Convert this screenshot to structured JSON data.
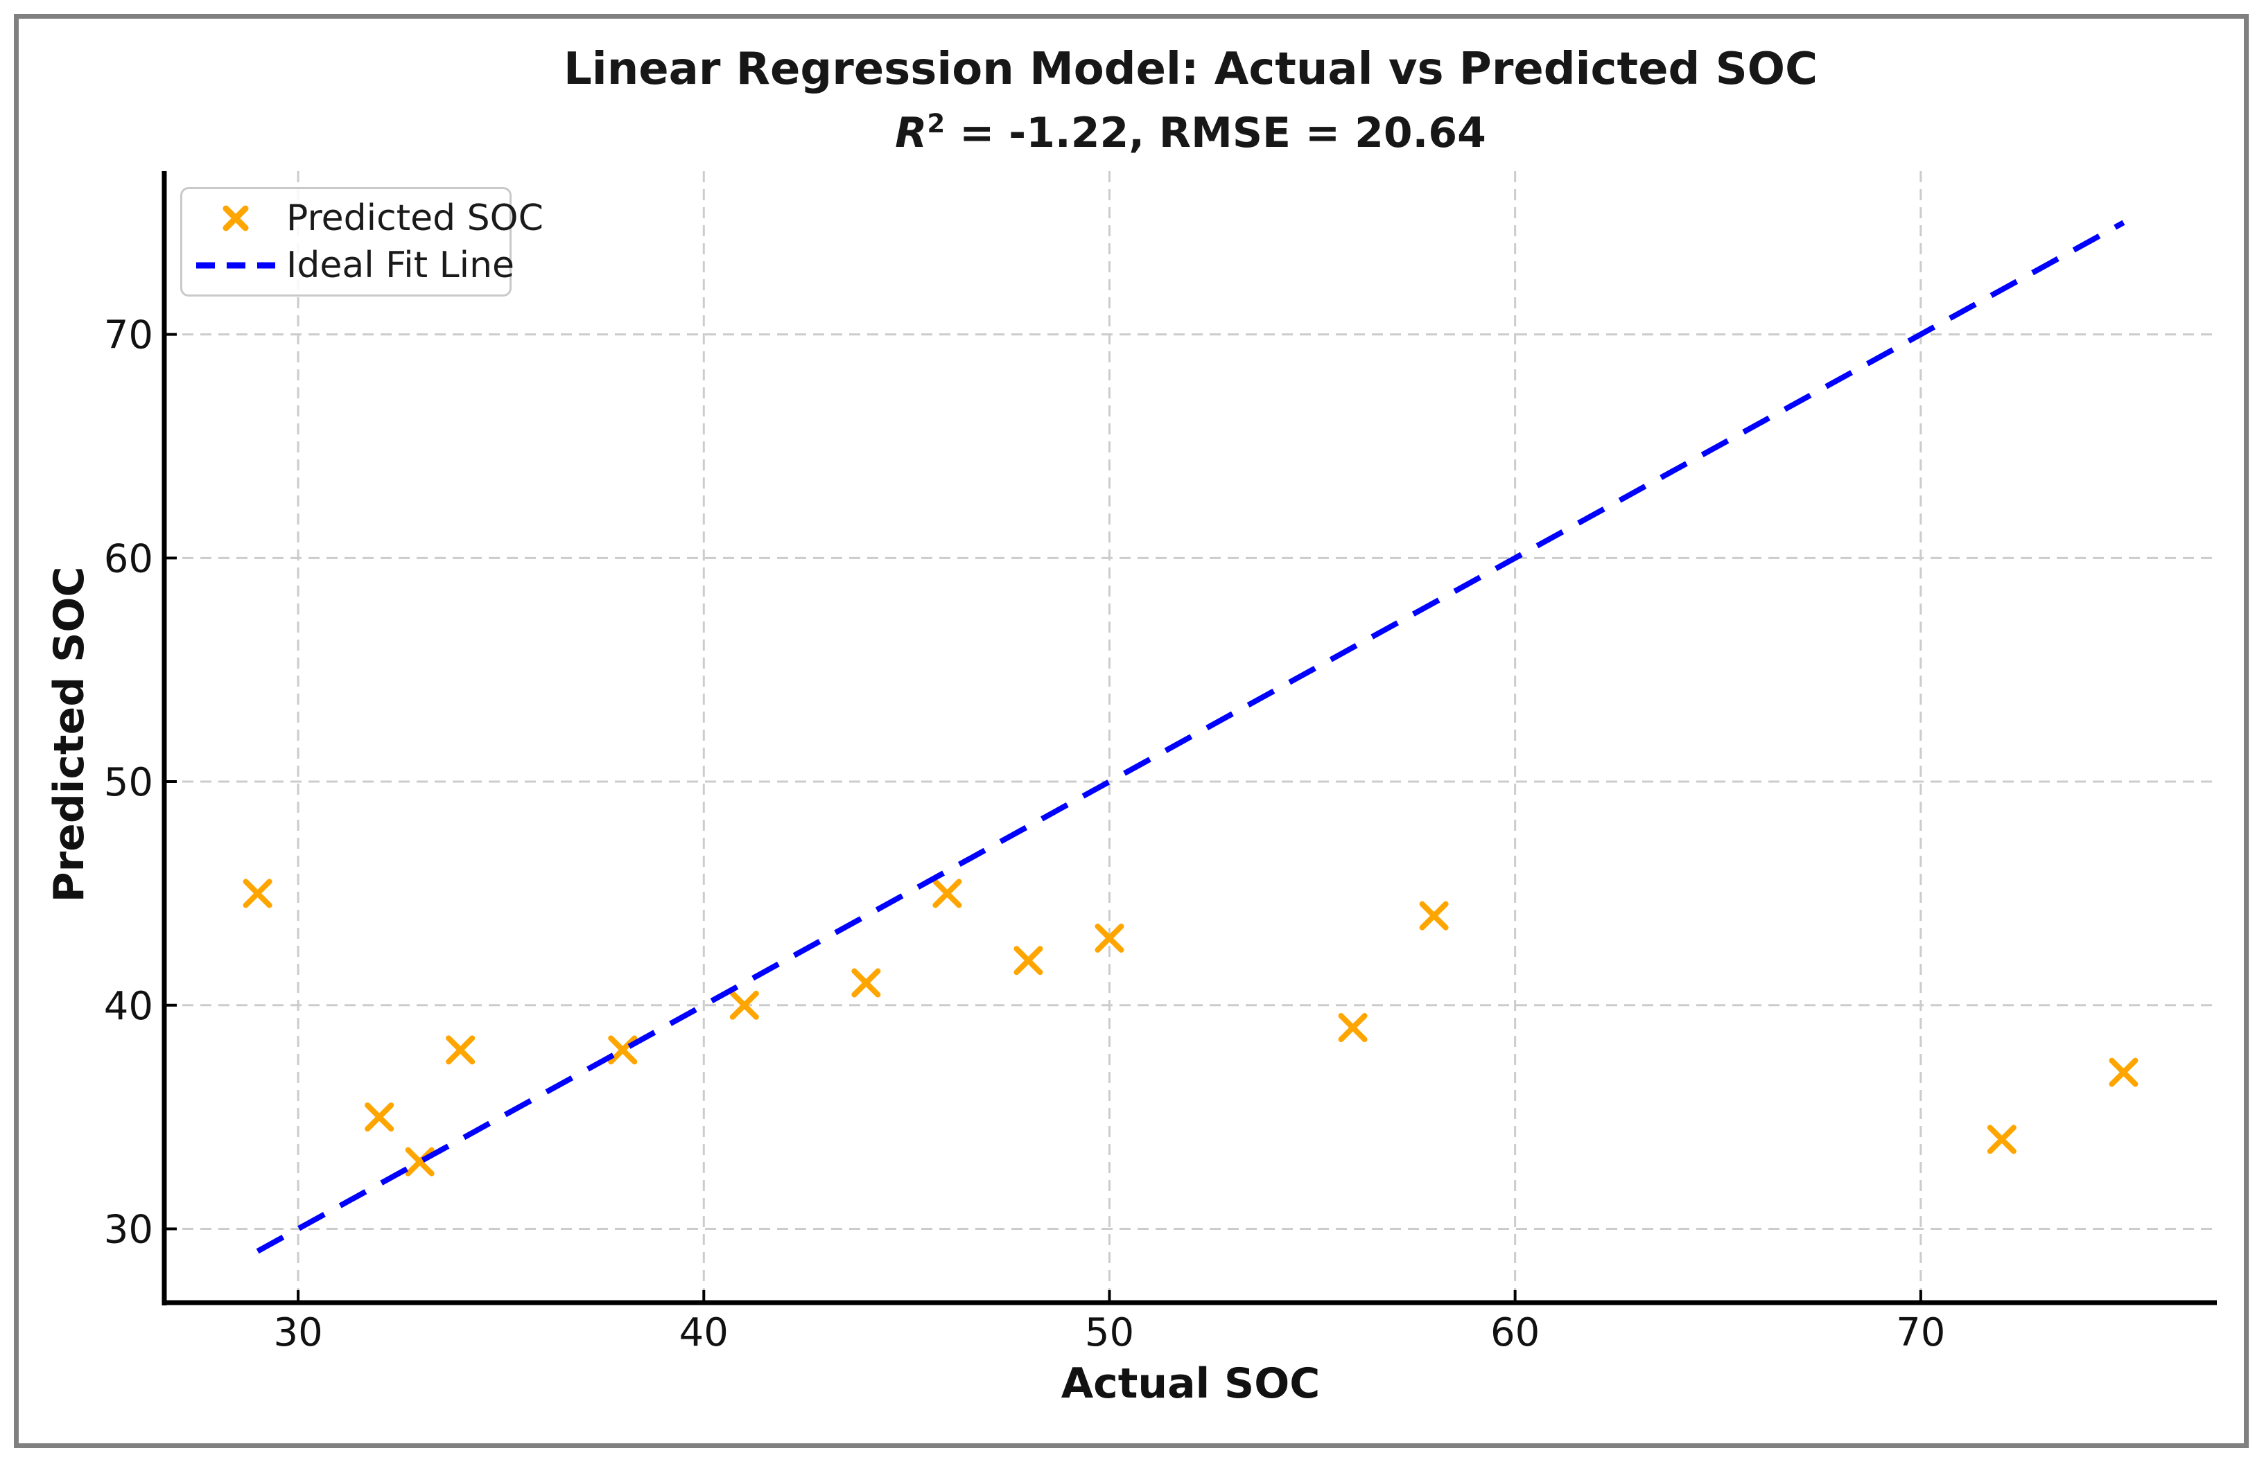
{
  "window": {
    "background": "#ffffff",
    "border_color": "#808080"
  },
  "chart_data": {
    "type": "scatter",
    "title": "Linear Regression Model: Actual vs Predicted SOC",
    "subtitle": {
      "r_symbol": "R",
      "r_exponent": "2",
      "rest": " = -1.22, RMSE = 20.64"
    },
    "r_squared": -1.22,
    "rmse": 20.64,
    "xlabel": "Actual SOC",
    "ylabel": "Predicted SOC",
    "xlim": [
      26.7,
      77.3
    ],
    "ylim": [
      26.7,
      77.3
    ],
    "x_ticks": [
      30,
      40,
      50,
      60,
      70
    ],
    "y_ticks": [
      30,
      40,
      50,
      60,
      70
    ],
    "grid": true,
    "grid_color": "#cccccc",
    "axis_color": "#000000",
    "tick_label_color": "#111111",
    "legend_position": "upper left",
    "series": [
      {
        "name": "Predicted SOC",
        "type": "scatter",
        "marker": "x",
        "color": "#FFA500",
        "points": [
          [
            29,
            45
          ],
          [
            32,
            35
          ],
          [
            33,
            33
          ],
          [
            34,
            38
          ],
          [
            38,
            38
          ],
          [
            41,
            40
          ],
          [
            44,
            41
          ],
          [
            46,
            45
          ],
          [
            48,
            42
          ],
          [
            50,
            43
          ],
          [
            56,
            39
          ],
          [
            58,
            44
          ],
          [
            72,
            34
          ],
          [
            75,
            37
          ]
        ]
      },
      {
        "name": "Ideal Fit Line",
        "type": "line",
        "line_style": "dashed",
        "color": "#0000FF",
        "points": [
          [
            29,
            29
          ],
          [
            75,
            75
          ]
        ]
      }
    ]
  }
}
